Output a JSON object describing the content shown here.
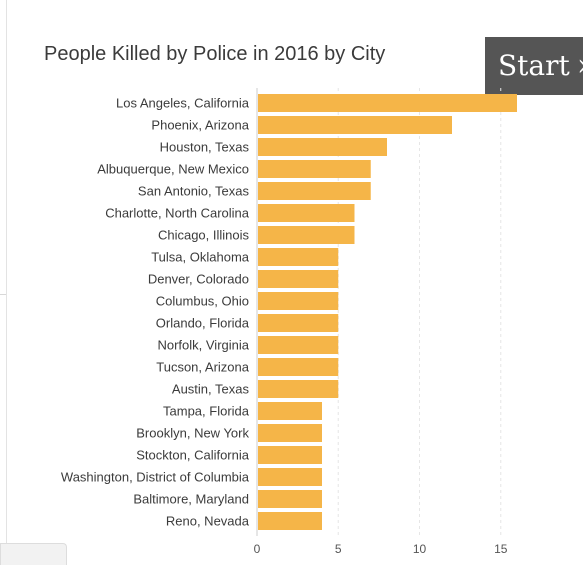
{
  "start_button": {
    "label": "Start",
    "chevron": "chevron-right-icon"
  },
  "colors": {
    "bar": "#f5b548",
    "grid": "#e6e6e6",
    "axis": "#cccccc",
    "button_bg": "#555555"
  },
  "chart_data": {
    "type": "bar",
    "orientation": "horizontal",
    "title": "People Killed by Police in 2016 by City",
    "xlabel": "",
    "ylabel": "",
    "categories": [
      "Los Angeles, California",
      "Phoenix, Arizona",
      "Houston, Texas",
      "Albuquerque, New Mexico",
      "San Antonio, Texas",
      "Charlotte, North Carolina",
      "Chicago, Illinois",
      "Tulsa, Oklahoma",
      "Denver, Colorado",
      "Columbus, Ohio",
      "Orlando, Florida",
      "Norfolk, Virginia",
      "Tucson, Arizona",
      "Austin, Texas",
      "Tampa, Florida",
      "Brooklyn, New York",
      "Stockton, California",
      "Washington, District of Columbia",
      "Baltimore, Maryland",
      "Reno, Nevada"
    ],
    "values": [
      16,
      12,
      8,
      7,
      7,
      6,
      6,
      5,
      5,
      5,
      5,
      5,
      5,
      5,
      4,
      4,
      4,
      4,
      4,
      4
    ],
    "xlim": [
      0,
      18
    ],
    "x_ticks": [
      0,
      5,
      10,
      15
    ],
    "grid": "vertical dashed",
    "legend": "none"
  }
}
